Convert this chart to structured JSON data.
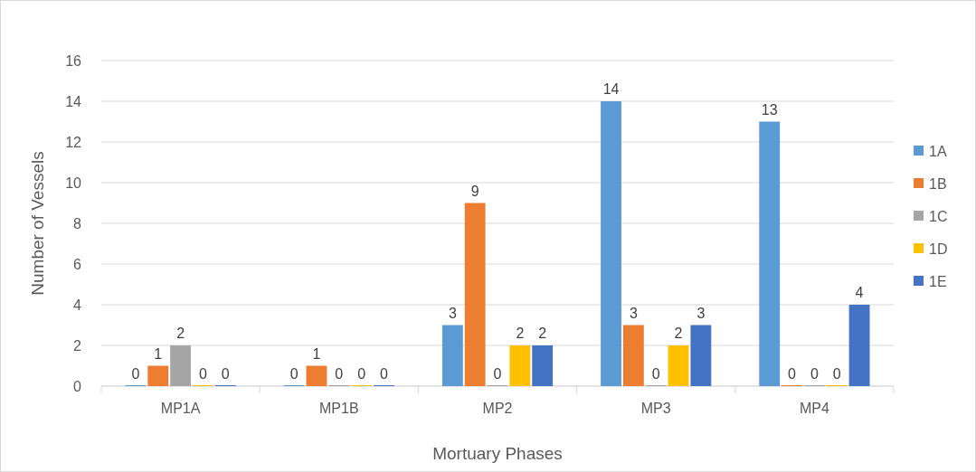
{
  "chart_data": {
    "type": "bar",
    "xlabel": "Mortuary Phases",
    "ylabel": "Number of Vessels",
    "categories": [
      "MP1A",
      "MP1B",
      "MP2",
      "MP3",
      "MP4"
    ],
    "series": [
      {
        "name": "1A",
        "color": "#5b9bd5",
        "values": [
          0,
          0,
          3,
          14,
          13
        ]
      },
      {
        "name": "1B",
        "color": "#ed7d31",
        "values": [
          1,
          1,
          9,
          3,
          0
        ]
      },
      {
        "name": "1C",
        "color": "#a5a5a5",
        "values": [
          2,
          0,
          0,
          0,
          0
        ]
      },
      {
        "name": "1D",
        "color": "#ffc000",
        "values": [
          0,
          0,
          2,
          2,
          0
        ]
      },
      {
        "name": "1E",
        "color": "#4472c4",
        "values": [
          0,
          0,
          2,
          3,
          4
        ]
      }
    ],
    "ylim": [
      0,
      16
    ],
    "yticks": [
      0,
      2,
      4,
      6,
      8,
      10,
      12,
      14,
      16
    ],
    "grid": "y",
    "legend": "right",
    "data_labels": true
  }
}
